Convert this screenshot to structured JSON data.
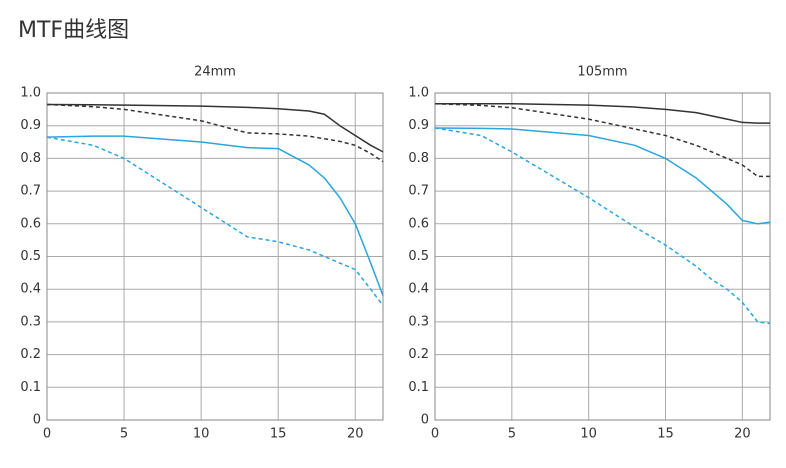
{
  "title": "MTF曲线图",
  "chart_data": [
    {
      "type": "line",
      "title": "24mm",
      "x": [
        0,
        3,
        5,
        10,
        13,
        15,
        17,
        18,
        19,
        20,
        21,
        21.8
      ],
      "xlim": [
        0,
        21.8
      ],
      "xticks": [
        0,
        5,
        10,
        15,
        20
      ],
      "ylim": [
        0,
        1
      ],
      "yticks": [
        0,
        0.1,
        0.2,
        0.3,
        0.4,
        0.5,
        0.6,
        0.7,
        0.8,
        0.9,
        {
          "value": 1,
          "label": "1.0"
        }
      ],
      "grid": true,
      "series": [
        {
          "color": "#333333",
          "dash": false,
          "values": [
            0.965,
            0.964,
            0.963,
            0.96,
            0.956,
            0.952,
            0.945,
            0.935,
            0.9,
            0.87,
            0.84,
            0.82
          ]
        },
        {
          "color": "#333333",
          "dash": true,
          "values": [
            0.965,
            0.958,
            0.95,
            0.915,
            0.878,
            0.875,
            0.868,
            0.86,
            0.852,
            0.84,
            0.815,
            0.79
          ]
        },
        {
          "color": "#2aa6dc",
          "dash": false,
          "values": [
            0.865,
            0.868,
            0.868,
            0.85,
            0.833,
            0.83,
            0.78,
            0.74,
            0.68,
            0.6,
            0.48,
            0.38
          ]
        },
        {
          "color": "#2aa6dc",
          "dash": true,
          "values": [
            0.865,
            0.84,
            0.8,
            0.65,
            0.56,
            0.545,
            0.52,
            0.5,
            0.48,
            0.46,
            0.4,
            0.35
          ]
        }
      ]
    },
    {
      "type": "line",
      "title": "105mm",
      "x": [
        0,
        3,
        5,
        10,
        13,
        15,
        17,
        18,
        19,
        20,
        21,
        21.8
      ],
      "xlim": [
        0,
        21.8
      ],
      "xticks": [
        0,
        5,
        10,
        15,
        20
      ],
      "ylim": [
        0,
        1
      ],
      "yticks": [
        0,
        0.1,
        0.2,
        0.3,
        0.4,
        0.5,
        0.6,
        0.7,
        0.8,
        0.9,
        {
          "value": 1,
          "label": "1.0"
        }
      ],
      "grid": true,
      "series": [
        {
          "color": "#333333",
          "dash": false,
          "values": [
            0.967,
            0.967,
            0.967,
            0.963,
            0.957,
            0.95,
            0.94,
            0.93,
            0.92,
            0.91,
            0.908,
            0.908
          ]
        },
        {
          "color": "#333333",
          "dash": true,
          "values": [
            0.967,
            0.962,
            0.955,
            0.92,
            0.89,
            0.87,
            0.84,
            0.82,
            0.8,
            0.78,
            0.745,
            0.745
          ]
        },
        {
          "color": "#2aa6dc",
          "dash": false,
          "values": [
            0.893,
            0.892,
            0.89,
            0.87,
            0.84,
            0.8,
            0.74,
            0.7,
            0.66,
            0.61,
            0.6,
            0.605
          ]
        },
        {
          "color": "#2aa6dc",
          "dash": true,
          "values": [
            0.893,
            0.87,
            0.82,
            0.68,
            0.59,
            0.535,
            0.47,
            0.43,
            0.4,
            0.36,
            0.3,
            0.295
          ]
        }
      ]
    }
  ]
}
